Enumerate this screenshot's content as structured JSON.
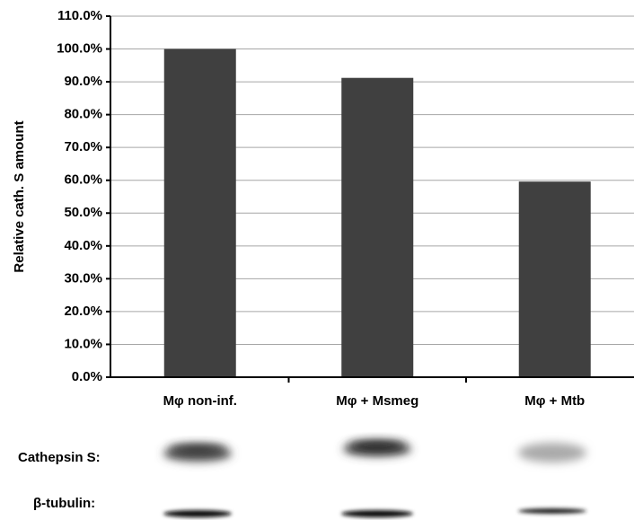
{
  "chart_data": {
    "type": "bar",
    "ylabel": "Relative cath. S amount",
    "categories": [
      "Mφ non-inf.",
      "Mφ + Msmeg",
      "Mφ + Mtb"
    ],
    "values": [
      100,
      91.2,
      59.6
    ],
    "color": "#404040",
    "ylim": [
      0,
      110
    ],
    "yticks": [
      {
        "value": 0,
        "label": "0.0%"
      },
      {
        "value": 10,
        "label": "10.0%"
      },
      {
        "value": 20,
        "label": "20.0%"
      },
      {
        "value": 30,
        "label": "30.0%"
      },
      {
        "value": 40,
        "label": "40.0%"
      },
      {
        "value": 50,
        "label": "50.0%"
      },
      {
        "value": 60,
        "label": "60.0%"
      },
      {
        "value": 70,
        "label": "70.0%"
      },
      {
        "value": 80,
        "label": "80.0%"
      },
      {
        "value": 90,
        "label": "90.0%"
      },
      {
        "value": 100,
        "label": "100.0%"
      },
      {
        "value": 110,
        "label": "110.0%"
      }
    ],
    "grid": true
  },
  "blot": {
    "rows": [
      "Cathepsin S:",
      "β-tubulin:"
    ]
  }
}
